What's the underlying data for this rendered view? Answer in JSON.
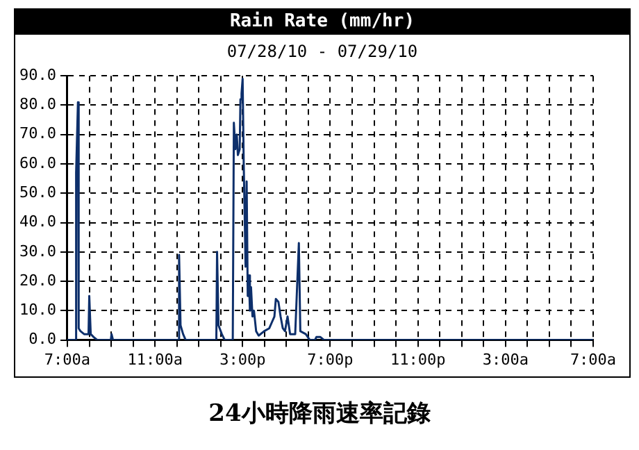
{
  "chart_data": {
    "type": "line",
    "title": "Rain Rate (mm/hr)",
    "subtitle": "07/28/10 - 07/29/10",
    "annotations": [
      "24小時降雨速率記錄"
    ],
    "x": [
      "--07-28T07:00",
      "--07-28T07:23",
      "--07-28T07:24",
      "--07-28T07:29",
      "--07-28T07:31",
      "--07-28T07:36",
      "--07-28T07:46",
      "--07-28T07:58",
      "--07-28T08:00",
      "--07-28T08:04",
      "--07-28T08:12",
      "--07-28T08:22",
      "--07-28T08:59",
      "--07-28T09:01",
      "--07-28T09:05",
      "--07-28T12:03",
      "--07-28T12:06",
      "--07-28T12:10",
      "--07-28T12:17",
      "--07-28T12:24",
      "--07-28T13:48",
      "--07-28T13:50",
      "--07-28T13:54",
      "--07-28T14:03",
      "--07-28T14:11",
      "--07-28T14:33",
      "--07-28T14:36",
      "--07-28T14:40",
      "--07-28T14:44",
      "--07-28T14:47",
      "--07-28T14:52",
      "--07-28T14:54",
      "--07-28T14:57",
      "--07-28T15:00",
      "--07-28T15:03",
      "--07-28T15:06",
      "--07-28T15:08",
      "--07-28T15:11",
      "--07-28T15:14",
      "--07-28T15:17",
      "--07-28T15:20",
      "--07-28T15:23",
      "--07-28T15:27",
      "--07-28T15:31",
      "--07-28T15:37",
      "--07-28T15:44",
      "--07-28T15:59",
      "--07-28T16:13",
      "--07-28T16:20",
      "--07-28T16:27",
      "--07-28T16:31",
      "--07-28T16:38",
      "--07-28T16:44",
      "--07-28T16:50",
      "--07-28T16:56",
      "--07-28T17:03",
      "--07-28T17:10",
      "--07-28T17:24",
      "--07-28T17:34",
      "--07-28T17:38",
      "--07-28T17:53",
      "--07-28T18:04",
      "--07-28T18:18",
      "--07-28T18:22",
      "--07-28T18:33",
      "--07-28T18:43",
      "--07-29T07:00"
    ],
    "series": [
      {
        "color": "#0d2f6b",
        "values": [
          0,
          0,
          57,
          81,
          4,
          3,
          2,
          2,
          15,
          2,
          1,
          0,
          0,
          2,
          0,
          0,
          29,
          5,
          2,
          0,
          0,
          30,
          5,
          2,
          0,
          0,
          74,
          65,
          70,
          63,
          65,
          82,
          84,
          89,
          60,
          40,
          25,
          54,
          15,
          22,
          10,
          18,
          8,
          10,
          3,
          1.5,
          3,
          4,
          6,
          8,
          14,
          13,
          8,
          4,
          3,
          8,
          2,
          2,
          33,
          3,
          2,
          0,
          0,
          1,
          1,
          0,
          0
        ]
      }
    ],
    "xlim": [
      "--07-28T07:00",
      "--07-29T07:00"
    ],
    "ylim": [
      0,
      90
    ],
    "xticks": [
      {
        "value": "--07-28T07:00",
        "label": "7:00a"
      },
      {
        "value": "--07-28T08:00",
        "label": null
      },
      {
        "value": "--07-28T09:00",
        "label": null
      },
      {
        "value": "--07-28T10:00",
        "label": null
      },
      {
        "value": "--07-28T11:00",
        "label": "11:00a"
      },
      {
        "value": "--07-28T12:00",
        "label": null
      },
      {
        "value": "--07-28T13:00",
        "label": null
      },
      {
        "value": "--07-28T14:00",
        "label": null
      },
      {
        "value": "--07-28T15:00",
        "label": "3:00p"
      },
      {
        "value": "--07-28T16:00",
        "label": null
      },
      {
        "value": "--07-28T17:00",
        "label": null
      },
      {
        "value": "--07-28T18:00",
        "label": null
      },
      {
        "value": "--07-28T19:00",
        "label": "7:00p"
      },
      {
        "value": "--07-28T20:00",
        "label": null
      },
      {
        "value": "--07-28T21:00",
        "label": null
      },
      {
        "value": "--07-28T22:00",
        "label": null
      },
      {
        "value": "--07-28T23:00",
        "label": "11:00p"
      },
      {
        "value": "--07-29T00:00",
        "label": null
      },
      {
        "value": "--07-29T01:00",
        "label": null
      },
      {
        "value": "--07-29T02:00",
        "label": null
      },
      {
        "value": "--07-29T03:00",
        "label": "3:00a"
      },
      {
        "value": "--07-29T04:00",
        "label": null
      },
      {
        "value": "--07-29T05:00",
        "label": null
      },
      {
        "value": "--07-29T06:00",
        "label": null
      },
      {
        "value": "--07-29T07:00",
        "label": "7:00a"
      }
    ],
    "yticks": [
      {
        "value": 0,
        "label": "0.0"
      },
      {
        "value": 10,
        "label": "10.0"
      },
      {
        "value": 20,
        "label": "20.0"
      },
      {
        "value": 30,
        "label": "30.0"
      },
      {
        "value": 40,
        "label": "40.0"
      },
      {
        "value": 50,
        "label": "50.0"
      },
      {
        "value": 60,
        "label": "60.0"
      },
      {
        "value": 70,
        "label": "70.0"
      },
      {
        "value": 80,
        "label": "80.0"
      },
      {
        "value": 90,
        "label": "90.0"
      }
    ],
    "grid": true,
    "legend": false,
    "marker": "none",
    "line_style": "solid"
  }
}
